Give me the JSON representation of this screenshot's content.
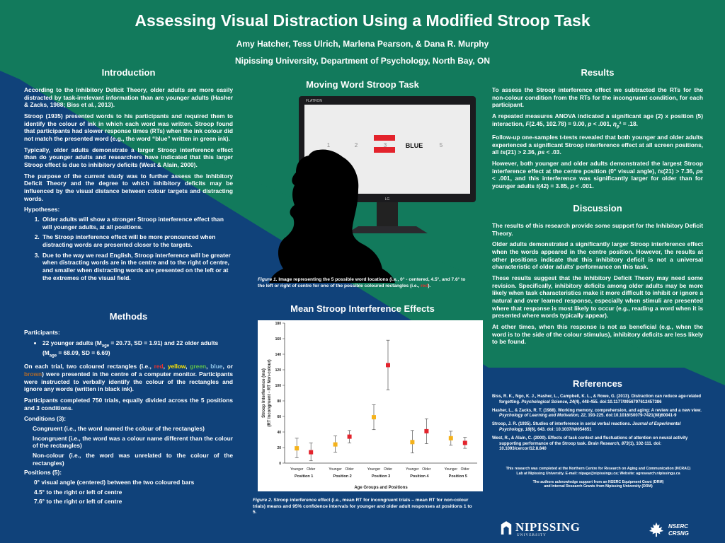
{
  "poster": {
    "title": "Assessing Visual Distraction Using a Modified Stroop Task",
    "authors": "Amy Hatcher, Tess Ulrich, Marlena Pearson, & Dana R. Murphy",
    "affiliation": "Nipissing University, Department of Psychology, North Bay, ON"
  },
  "colors": {
    "navy": "#10427a",
    "green": "#127a5c",
    "stim_red": "#e3232c"
  },
  "intro": {
    "heading": "Introduction",
    "p1": "According to the Inhibitory Deficit Theory, older adults are more easily distracted by task-irrelevant information than are younger adults (Hasher & Zacks, 1988; Biss et al., 2013).",
    "p2": "Stroop (1935) presented words to his participants and required them to identify the colour of ink in which each word was written. Stroop found that participants had slower response times (RTs) when the ink colour did not match the presented word (e.g., the word “blue” written in green ink).",
    "p3": "Typically, older adults demonstrate a larger Stroop interference effect than do younger adults and researchers have indicated that this larger Stroop effect is due to inhibitory deficits (West & Alain, 2000).",
    "p4": "The purpose of the current study was to further assess the Inhibitory Deficit Theory and the degree to which inhibitory deficits may be influenced by the visual distance between colour targets and distracting words.",
    "hyp_label": "Hypotheses:",
    "hypotheses": [
      "Older adults will show a stronger Stroop interference effect than will younger adults, at all positions.",
      "The Stroop interference effect will be more pronounced when distracting words are presented closer to the targets.",
      "Due to the way we read English, Stroop interference will be greater when distracting words are in the centre and to the right of centre, and smaller when distracting words are presented on the left or at the extremes of the visual field."
    ]
  },
  "methods": {
    "heading": "Methods",
    "participants_label": "Participants:",
    "participants_a": "22 younger adults (M",
    "sub_age": "age",
    "participants_b": " = 20.73, SD = 1.91) and 22 older adults (M",
    "participants_c": " = 68.09, SD = 6.69)",
    "trial_a": "On each trial, two coloured rectangles (i.e., ",
    "c_red": "red",
    "sep": ", ",
    "c_yellow": "yellow",
    "c_green": "green",
    "c_blue": "blue",
    "or": ", or ",
    "c_brown": "brown",
    "trial_b": ") were presented in the centre of a computer monitor. Participants were instructed to verbally identify the colour of the rectangles and ignore any words (written in black ink).",
    "p_trials": "Participants completed 750 trials, equally divided across the 5 positions and 3 conditions.",
    "conditions_label": "Conditions (3):",
    "cond1": "Congruent (i.e., the word named the colour of the rectangles)",
    "cond2": "Incongruent (i.e., the word was a colour name different than the colour of the rectangles)",
    "cond3": "Non-colour (i.e., the word was unrelated to the colour of the rectangles)",
    "positions_label": "Positions (5):",
    "pos1": "0° visual angle (centered) between the two coloured bars",
    "pos2": "4.5° to the right or left of centre",
    "pos3": "7.6° to the right or left of centre"
  },
  "figure1": {
    "heading": "Moving Word Stroop Task",
    "brand": "FLATRON",
    "brand2": "LG",
    "positions": [
      "1",
      "2",
      "3",
      "4",
      "5"
    ],
    "word": "BLUE",
    "caption_label": "Figure 1",
    "caption_a": ". Image representing the 5 possible word locations (i.e., 0° - centered, 4.5°, and 7.6° to the left or right of centre for one of the possible coloured rectangles (i.e., ",
    "caption_red": "red",
    "caption_b": ")."
  },
  "figure2": {
    "heading": "Mean Stroop Interference Effects",
    "caption_label": "Figure 2",
    "caption_text": ". Stroop interference effect (i.e., mean RT for incongruent trials – mean RT for non-colour trials) means and 95% confidence intervals for younger and older adult responses at positions 1 to 5."
  },
  "chart_data": {
    "type": "scatter",
    "title": "",
    "xlabel": "Age Groups and Positions",
    "ylabel": "Stroop Interference (ms) (RT Incongruent - RT Non-colour)",
    "ylabel_line1": "Stroop Interference (ms)",
    "ylabel_line2": "(RT Incongruent - RT Non-colour)",
    "ylim": [
      0,
      180
    ],
    "yticks": [
      0,
      20,
      40,
      60,
      80,
      100,
      120,
      140,
      160,
      180
    ],
    "groups": [
      "Position 1",
      "Position 2",
      "Position 3",
      "Position 4",
      "Position 5"
    ],
    "age_labels": [
      "Younger",
      "Older"
    ],
    "series": [
      {
        "name": "Younger",
        "color": "#f5b21b",
        "values": [
          19,
          24,
          59,
          27,
          32
        ],
        "ci_low": [
          7,
          14,
          43,
          13,
          23
        ],
        "ci_high": [
          32,
          35,
          75,
          42,
          41
        ]
      },
      {
        "name": "Older",
        "color": "#e3232c",
        "values": [
          14,
          34,
          126,
          41,
          26
        ],
        "ci_low": [
          3,
          26,
          94,
          25,
          19
        ],
        "ci_high": [
          26,
          42,
          158,
          57,
          33
        ]
      }
    ],
    "grid": false,
    "legend": "none"
  },
  "results": {
    "heading": "Results",
    "p1": "To assess the Stroop interference effect we subtracted the RTs for the non-colour condition from the RTs for the incongruent condition, for each participant.",
    "p2_a": "A repeated measures ANOVA indicated a significant age (2) x position (5) interaction, ",
    "p2_b": "F",
    "p2_c": "(2.45, 102.78) = 9.00, ",
    "p2_p": "p",
    "p2_d": " < .001, ",
    "p2_eta": "η",
    "p2_sub": "p",
    "p2_e": "² = .18.",
    "p3_a": "Follow-up one-samples t-tests revealed that both younger and older adults experienced a significant Stroop interference effect at all screen positions, all ",
    "p3_t": "ts",
    "p3_b": "(21) > 2.36, ",
    "p3_ps": "ps",
    "p3_c": " < .03.",
    "p4_a": "However, both younger and older adults demonstrated the largest Stroop interference effect at the centre position (0° visual angle), ",
    "p4_t": "ts",
    "p4_b": "(21) > 7.36, ",
    "p4_ps": "ps",
    "p4_c": " < .001, and this interference was significantly larger for older than for younger adults ",
    "p4_t2": "t",
    "p4_d": "(42) = 3.85, ",
    "p4_p": "p",
    "p4_e": " < .001."
  },
  "discussion": {
    "heading": "Discussion",
    "p1": "The results of this research provide some support for the Inhibitory Deficit Theory.",
    "p2": "Older adults demonstrated a significantly larger Stroop interference effect when the words appeared in the centre position. However, the results at other positions indicate that this inhibitory deficit is not a universal characteristic of older adults' performance on this task.",
    "p3": "These results suggest that the Inhibitory Deficit Theory may need some revision. Specifically, inhibitory deficits among older adults may be more likely when task characteristics make it more difficult to inhibit or ignore a natural and over learned response, especially when stimuli are presented where that response is most likely to occur (e.g., reading a word when it is presented where words typically appear).",
    "p4": "At other times, when this response is not as beneficial (e.g., when the word is to the side of the colour stimulus), inhibitory deficits are less likely to be found."
  },
  "references": {
    "heading": "References",
    "r1_a": "Biss, R. K., Ngo, K. J., Hasher, L., Campbell, K. L., & Rowe, G. (2013). Distraction can reduce age-related forgetting. ",
    "r1_j": "Psychological Science, 24",
    "r1_b": "(4), 448-455. doi:10.1177/0956797612457386",
    "r2_a": "Hasher, L., & Zacks, R. T. (1988). Working memory, comprehension, and aging: A review and a new view. ",
    "r2_j": "Psychology of Learning and Motivation, 22",
    "r2_b": ", 193-225. doi:10.1016/S0079-7421(08)60041-9",
    "r3_a": "Stroop, J. R. (1935). Studies of interference in serial verbal reactions. ",
    "r3_j": "Journal of Experimental Psychology, 18",
    "r3_b": "(6), 643. doi: 10.1037/h0054651",
    "r4_a": "West, R., & Alain, C. (2000). Effects of task context and fluctuations of attention on neural activity supporting performance of the Stroop task. ",
    "r4_j": "Brain Research, 873",
    "r4_b": "(1), 102-111. doi: 10.1093/cercor/12.8.840"
  },
  "ack": {
    "line1": "This research was completed at the Northern Centre for Research on Aging and Communication (NCRAC)",
    "line2": "Lab at Nipissing University.    E-mail: nipage@nipissingu.ca;   Website: agresearch.nipissingu.ca",
    "line3": "The authors acknowledge support from an NSERC Equipment Grant (DRM)",
    "line4": "and Internal Research Grants from Nipissing University (DRM)"
  },
  "logos": {
    "nipissing": "NIPISSING",
    "university": "U N I V E R S I T Y",
    "nserc": "NSERC",
    "crsng": "CRSNG"
  }
}
